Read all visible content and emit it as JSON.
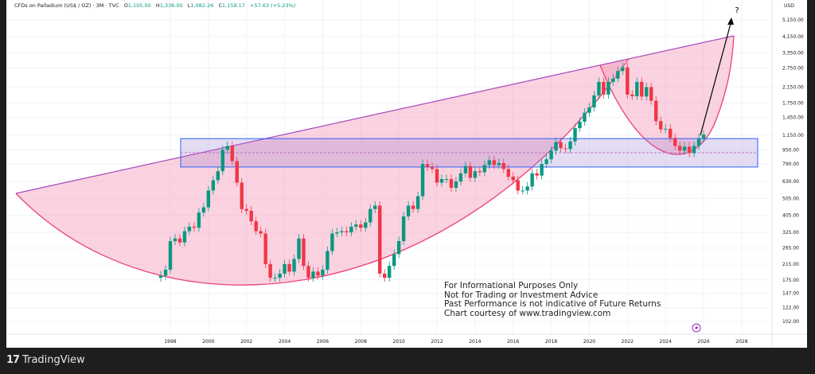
{
  "header": {
    "symbol": "CFDs on Palladium (US$ / OZ) · 3M · TVC",
    "open_label": "O",
    "open": "1,105.00",
    "high_label": "H",
    "high": "1,336.00",
    "low_label": "L",
    "low": "1,082.26",
    "close_label": "C",
    "close": "1,159.17",
    "change": "+57.63 (+5.23%)"
  },
  "disclaimer": [
    "For Informational Purposes Only",
    "Not for Trading or Investment Advice",
    "Past Performance is not indicative of Future Returns",
    "Chart courtesy of www.tradingview.com"
  ],
  "annotation": {
    "question_mark": "?"
  },
  "footer": {
    "brand": "TradingView",
    "logo_text": "TV"
  },
  "colors": {
    "up": "#089981",
    "down": "#f23645",
    "cup_fill": "#f48fb1",
    "trendline": "#ab47bc",
    "zone": "#2962ff"
  },
  "chart_data": {
    "type": "candlestick",
    "title": "CFDs on Palladium (US$ / OZ) · 3M · TVC",
    "currency": "USD",
    "yscale": "log",
    "ylim": [
      95,
      5600
    ],
    "y_ticks": [
      "5,150.00",
      "4,150.00",
      "3,350.00",
      "2,750.00",
      "2,150.00",
      "1,750.00",
      "1,450.00",
      "1,150.00",
      "950.00",
      "790.00",
      "630.00",
      "505.00",
      "405.00",
      "325.00",
      "265.00",
      "215.00",
      "175.00",
      "147.00",
      "122.00",
      "102.00"
    ],
    "y_tick_values": [
      5150,
      4150,
      3350,
      2750,
      2150,
      1750,
      1450,
      1150,
      950,
      790,
      630,
      505,
      405,
      325,
      265,
      215,
      175,
      147,
      122,
      102
    ],
    "x_ticks": [
      "1998",
      "2000",
      "2002",
      "2004",
      "2006",
      "2008",
      "2010",
      "2012",
      "2014",
      "2016",
      "2018",
      "2020",
      "2022",
      "2024",
      "2026",
      "2028"
    ],
    "start": 1997.5,
    "period_years": 0.25,
    "first_open": 180,
    "closes": [
      185,
      200,
      290,
      300,
      285,
      330,
      350,
      345,
      420,
      450,
      560,
      640,
      720,
      950,
      1000,
      820,
      620,
      440,
      430,
      375,
      330,
      320,
      215,
      180,
      180,
      190,
      215,
      195,
      230,
      300,
      210,
      180,
      195,
      185,
      200,
      255,
      320,
      325,
      330,
      325,
      350,
      360,
      345,
      370,
      440,
      460,
      190,
      180,
      210,
      245,
      290,
      400,
      460,
      440,
      520,
      790,
      760,
      740,
      620,
      650,
      650,
      580,
      630,
      700,
      770,
      660,
      720,
      710,
      780,
      830,
      780,
      800,
      740,
      670,
      640,
      560,
      560,
      590,
      700,
      680,
      790,
      840,
      940,
      1050,
      970,
      960,
      1060,
      1260,
      1370,
      1540,
      1650,
      1930,
      2300,
      1950,
      2300,
      2400,
      2650,
      2780,
      1950,
      1910,
      2300,
      1900,
      2150,
      1800,
      1380,
      1240,
      1250,
      1110,
      1000,
      940,
      990,
      910,
      1000,
      1105,
      1159
    ],
    "zone": {
      "low": 760,
      "high": 1100,
      "mid": 915
    },
    "projection_target_year": 2027.5
  }
}
